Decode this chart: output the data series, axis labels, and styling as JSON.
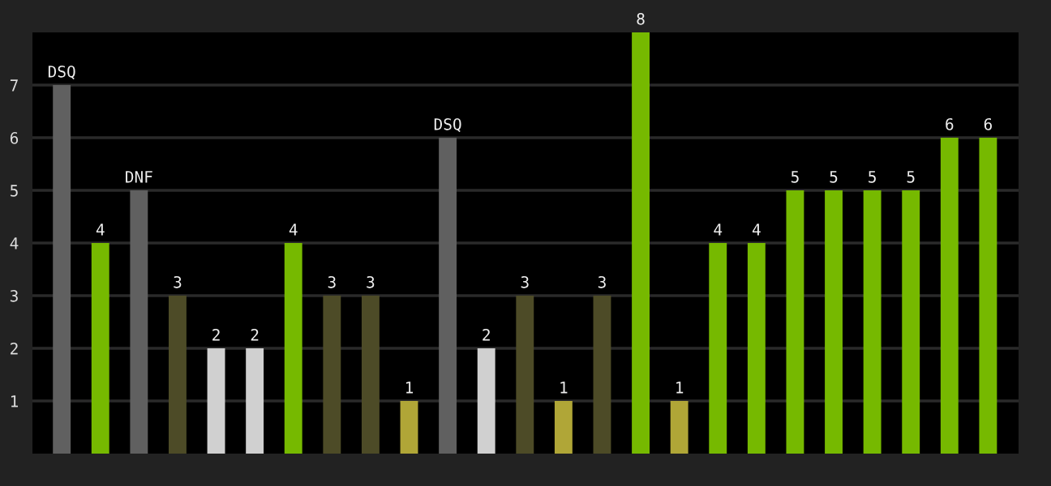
{
  "chart_data": {
    "type": "bar",
    "categories": [
      null,
      null,
      null,
      null,
      null,
      null,
      null,
      null,
      null,
      null,
      null,
      null,
      null,
      null,
      null,
      null,
      null,
      null,
      null,
      null,
      null,
      null,
      null,
      null,
      null
    ],
    "values": [
      7,
      4,
      5,
      3,
      2,
      2,
      4,
      3,
      3,
      1,
      6,
      2,
      3,
      1,
      3,
      8,
      1,
      4,
      4,
      5,
      5,
      5,
      5,
      6,
      6
    ],
    "colors": [
      "#606060",
      "#76b900",
      "#606060",
      "#4d4b27",
      "#d0d0d0",
      "#d0d0d0",
      "#76b900",
      "#4d4b27",
      "#4d4b27",
      "#b0a637",
      "#606060",
      "#d0d0d0",
      "#4d4b27",
      "#b0a637",
      "#4d4b27",
      "#76b900",
      "#b0a637",
      "#76b900",
      "#76b900",
      "#76b900",
      "#76b900",
      "#76b900",
      "#76b900",
      "#76b900",
      "#76b900"
    ],
    "value_labels": [
      "DSQ",
      "4",
      "DNF",
      "3",
      "2",
      "2",
      "4",
      "3",
      "3",
      "1",
      "DSQ",
      "2",
      "3",
      "1",
      "3",
      "8",
      "1",
      "4",
      "4",
      "5",
      "5",
      "5",
      "5",
      "6",
      "6"
    ],
    "ylim": [
      0,
      8
    ],
    "yticks": [
      1,
      2,
      3,
      4,
      5,
      6,
      7
    ],
    "grid": "y",
    "legend": false,
    "tick_labels": "y"
  }
}
